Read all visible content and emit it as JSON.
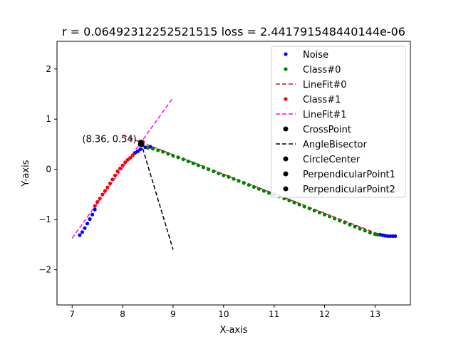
{
  "chart_data": {
    "type": "scatter",
    "title": "r = 0.06492312252521515 loss = 2.441791548440144e-06",
    "xlabel": "X-axis",
    "ylabel": "Y-axis",
    "xlim": [
      6.7,
      13.7
    ],
    "ylim": [
      -2.7,
      2.55
    ],
    "x_ticks": [
      7,
      8,
      9,
      10,
      11,
      12,
      13
    ],
    "y_ticks": [
      -2,
      -1,
      0,
      1,
      2
    ],
    "grid": false,
    "legend_position": "top-right",
    "annotation": {
      "text": "(8.36, 0.54)",
      "x": 7.2,
      "y": 0.6
    },
    "colors": {
      "noise": "#0000ff",
      "class0": "#008000",
      "linefit0": "#b22222",
      "class1": "#ff0000",
      "linefit1": "#ff00ff",
      "black": "#000000"
    },
    "series": [
      {
        "name": "Noise",
        "kind": "points",
        "color": "#0000ff",
        "x": [
          7.15,
          7.2,
          7.25,
          7.3,
          7.35,
          7.4,
          7.45,
          8.25,
          8.3,
          8.35,
          8.45,
          8.55,
          13.1,
          13.15,
          13.2,
          13.25,
          13.3,
          13.35,
          13.4
        ],
        "y": [
          -1.31,
          -1.25,
          -1.17,
          -1.08,
          -0.99,
          -0.9,
          -0.8,
          0.33,
          0.36,
          0.4,
          0.44,
          0.45,
          -1.3,
          -1.31,
          -1.32,
          -1.33,
          -1.33,
          -1.33,
          -1.33
        ]
      },
      {
        "name": "Class#0",
        "kind": "points",
        "color": "#008000",
        "x": [
          8.5,
          8.6,
          8.7,
          8.8,
          8.9,
          9.0,
          9.1,
          9.2,
          9.3,
          9.4,
          9.5,
          9.6,
          9.7,
          9.8,
          9.9,
          10.0,
          10.1,
          10.2,
          10.3,
          10.4,
          10.5,
          10.6,
          10.7,
          10.8,
          10.9,
          11.0,
          11.1,
          11.2,
          11.3,
          11.4,
          11.5,
          11.6,
          11.7,
          11.8,
          11.9,
          12.0,
          12.1,
          12.2,
          12.3,
          12.4,
          12.5,
          12.6,
          12.7,
          12.8,
          12.9,
          13.0,
          13.05
        ],
        "y": [
          0.43,
          0.41,
          0.38,
          0.35,
          0.31,
          0.27,
          0.24,
          0.2,
          0.16,
          0.12,
          0.08,
          0.04,
          0.0,
          -0.04,
          -0.08,
          -0.12,
          -0.15,
          -0.19,
          -0.23,
          -0.27,
          -0.31,
          -0.35,
          -0.39,
          -0.43,
          -0.47,
          -0.5,
          -0.54,
          -0.58,
          -0.62,
          -0.66,
          -0.7,
          -0.74,
          -0.78,
          -0.82,
          -0.86,
          -0.9,
          -0.94,
          -0.98,
          -1.02,
          -1.06,
          -1.1,
          -1.14,
          -1.18,
          -1.22,
          -1.26,
          -1.29,
          -1.3
        ]
      },
      {
        "name": "LineFit#0",
        "kind": "line",
        "color": "#b22222",
        "dash": "6,3",
        "x": [
          8.0,
          13.1
        ],
        "y": [
          0.68,
          -1.3
        ]
      },
      {
        "name": "Class#1",
        "kind": "points",
        "color": "#ff0000",
        "x": [
          7.45,
          7.5,
          7.55,
          7.6,
          7.65,
          7.7,
          7.75,
          7.8,
          7.85,
          7.9,
          7.95,
          8.0,
          8.05,
          8.1,
          8.15,
          8.2,
          8.35,
          8.4
        ],
        "y": [
          -0.73,
          -0.65,
          -0.58,
          -0.5,
          -0.43,
          -0.36,
          -0.28,
          -0.2,
          -0.12,
          -0.04,
          0.02,
          0.08,
          0.14,
          0.19,
          0.23,
          0.28,
          0.52,
          0.55
        ]
      },
      {
        "name": "LineFit#1",
        "kind": "line",
        "color": "#ff00ff",
        "dash": "6,3",
        "x": [
          7.0,
          9.0
        ],
        "y": [
          -1.37,
          1.43
        ]
      },
      {
        "name": "CrossPoint",
        "kind": "points",
        "color": "#000000",
        "x": [
          8.36
        ],
        "y": [
          0.54
        ]
      },
      {
        "name": "AngleBisector",
        "kind": "line",
        "color": "#000000",
        "dash": "6,3",
        "x": [
          8.36,
          9.0
        ],
        "y": [
          0.54,
          -1.6
        ]
      },
      {
        "name": "CircleCenter",
        "kind": "points",
        "color": "#000000",
        "x": [
          8.38
        ],
        "y": [
          0.49
        ]
      },
      {
        "name": "PerpendicularPoint1",
        "kind": "points",
        "color": "#000000",
        "x": [
          8.37
        ],
        "y": [
          0.51
        ]
      },
      {
        "name": "PerpendicularPoint2",
        "kind": "points",
        "color": "#000000",
        "x": [
          8.35
        ],
        "y": [
          0.5
        ]
      }
    ]
  }
}
